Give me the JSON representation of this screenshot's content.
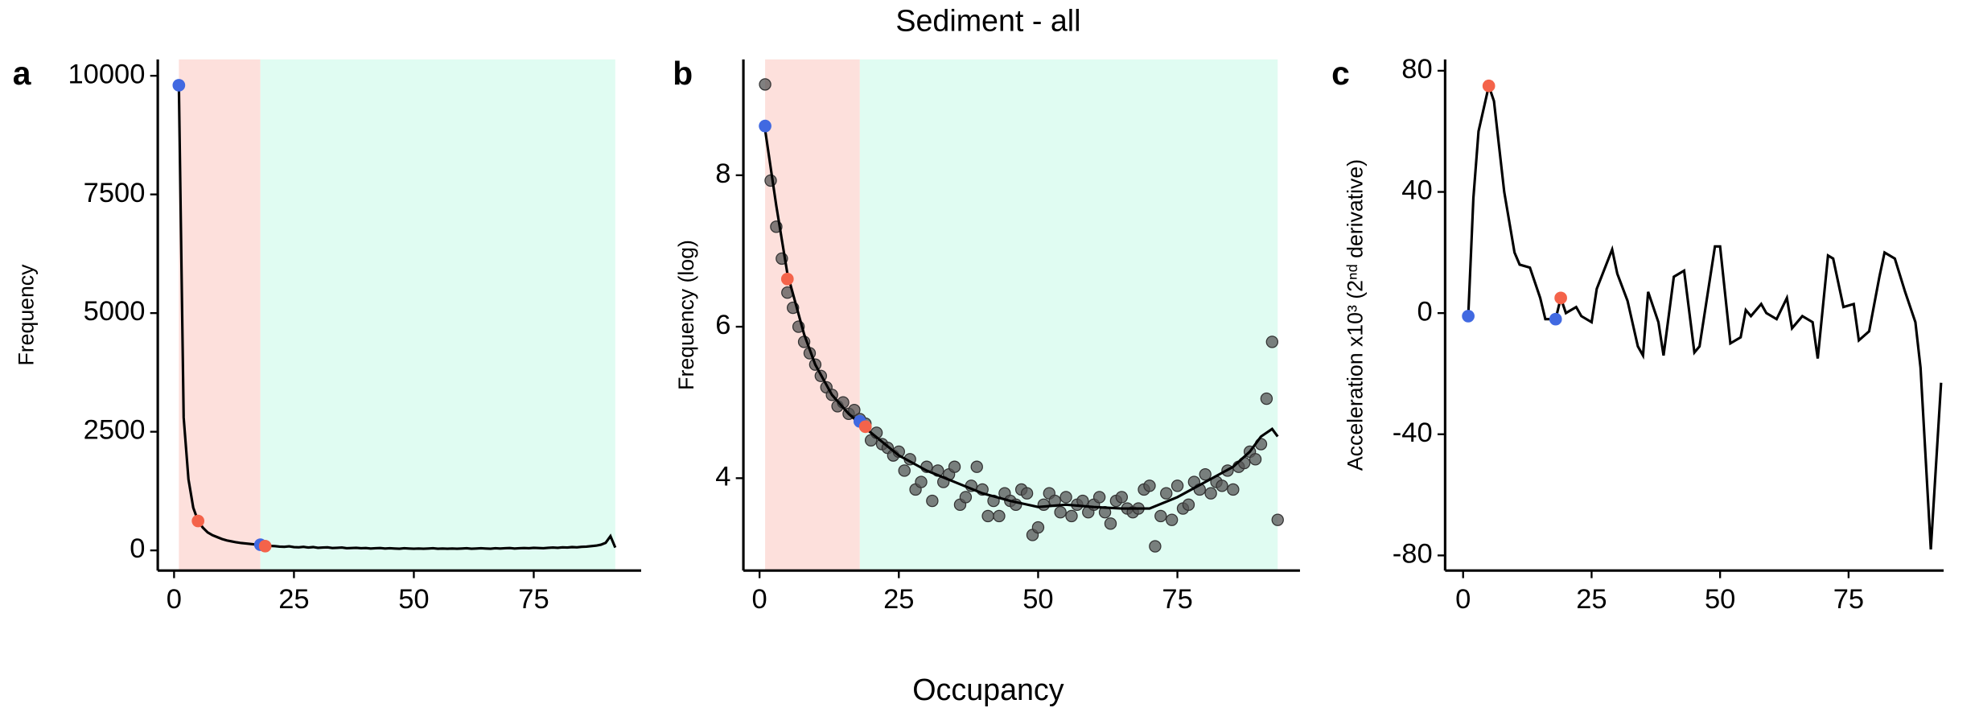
{
  "title": "Sediment - all",
  "xlabel": "Occupancy",
  "chart_data": [
    {
      "type": "line",
      "panel": "a",
      "ylabel": "Frequency",
      "xlim": [
        -3.4,
        97.4
      ],
      "ylim": [
        -425,
        10345
      ],
      "xticks": [
        0,
        25,
        50,
        75
      ],
      "yticks": [
        0,
        2500,
        5000,
        7500,
        10000
      ],
      "regions": [
        {
          "from": 1,
          "to": 18,
          "color": "#fde0dc"
        },
        {
          "from": 18,
          "to": 92,
          "color": "#e0fcf2"
        }
      ],
      "series": [
        {
          "color": "#000000",
          "x": [
            1,
            2,
            3,
            4,
            5,
            6,
            7,
            8,
            9,
            10,
            11,
            12,
            13,
            14,
            15,
            16,
            17,
            18,
            19,
            20,
            21,
            22,
            23,
            24,
            25,
            26,
            27,
            28,
            29,
            30,
            31,
            32,
            33,
            34,
            35,
            36,
            37,
            38,
            39,
            40,
            41,
            42,
            43,
            44,
            45,
            46,
            47,
            48,
            49,
            50,
            51,
            52,
            53,
            54,
            55,
            56,
            57,
            58,
            59,
            60,
            61,
            62,
            63,
            64,
            65,
            66,
            67,
            68,
            69,
            70,
            71,
            72,
            73,
            74,
            75,
            76,
            77,
            78,
            79,
            80,
            81,
            82,
            83,
            84,
            85,
            86,
            87,
            88,
            89,
            90,
            91,
            92
          ],
          "values": [
            9800,
            2800,
            1500,
            900,
            620,
            480,
            380,
            320,
            280,
            240,
            210,
            190,
            170,
            155,
            145,
            135,
            125,
            120,
            100,
            95,
            90,
            80,
            75,
            85,
            70,
            65,
            75,
            60,
            70,
            55,
            60,
            65,
            50,
            55,
            60,
            45,
            50,
            55,
            45,
            50,
            40,
            45,
            50,
            40,
            45,
            40,
            35,
            45,
            40,
            35,
            40,
            35,
            40,
            45,
            35,
            40,
            35,
            40,
            35,
            40,
            45,
            35,
            40,
            45,
            40,
            35,
            45,
            40,
            45,
            50,
            40,
            45,
            50,
            45,
            55,
            50,
            45,
            55,
            60,
            55,
            65,
            60,
            70,
            65,
            75,
            80,
            90,
            100,
            120,
            160,
            300,
            60
          ]
        }
      ],
      "highlights": {
        "x": [
          1,
          5,
          18,
          19
        ],
        "values": [
          9800,
          620,
          120,
          90
        ],
        "colors": [
          "#4169e1",
          "#f4634a",
          "#4169e1",
          "#f4634a"
        ]
      }
    },
    {
      "type": "scatter",
      "panel": "b",
      "ylabel": "Frequency (log)",
      "xlim": [
        -2.9,
        97
      ],
      "ylim": [
        2.78,
        9.53
      ],
      "xticks": [
        0,
        25,
        50,
        75
      ],
      "yticks": [
        4,
        6,
        8
      ],
      "regions": [
        {
          "from": 1,
          "to": 18,
          "color": "#fde0dc"
        },
        {
          "from": 18,
          "to": 93,
          "color": "#e0fcf2"
        }
      ],
      "series": [
        {
          "color": "#555555",
          "x": [
            1,
            2,
            3,
            4,
            5,
            6,
            7,
            8,
            9,
            10,
            11,
            12,
            13,
            14,
            15,
            16,
            17,
            18,
            19,
            20,
            21,
            22,
            23,
            24,
            25,
            26,
            27,
            28,
            29,
            30,
            31,
            32,
            33,
            34,
            35,
            36,
            37,
            38,
            39,
            40,
            41,
            42,
            43,
            44,
            45,
            46,
            47,
            48,
            49,
            50,
            51,
            52,
            53,
            54,
            55,
            56,
            57,
            58,
            59,
            60,
            61,
            62,
            63,
            64,
            65,
            66,
            67,
            68,
            69,
            70,
            71,
            72,
            73,
            74,
            75,
            76,
            77,
            78,
            79,
            80,
            81,
            82,
            83,
            84,
            85,
            86,
            87,
            88,
            89,
            90,
            91,
            92,
            93
          ],
          "values": [
            9.2,
            7.93,
            7.32,
            6.9,
            6.45,
            6.25,
            6.0,
            5.8,
            5.65,
            5.5,
            5.35,
            5.2,
            5.1,
            4.95,
            5.0,
            4.85,
            4.9,
            4.78,
            4.72,
            4.5,
            4.6,
            4.45,
            4.4,
            4.3,
            4.35,
            4.1,
            4.25,
            3.85,
            3.95,
            4.15,
            3.7,
            4.1,
            3.95,
            4.05,
            4.15,
            3.65,
            3.75,
            3.9,
            4.15,
            3.85,
            3.5,
            3.7,
            3.5,
            3.8,
            3.7,
            3.65,
            3.85,
            3.8,
            3.25,
            3.35,
            3.65,
            3.8,
            3.7,
            3.55,
            3.75,
            3.5,
            3.65,
            3.7,
            3.55,
            3.65,
            3.75,
            3.55,
            3.4,
            3.7,
            3.75,
            3.6,
            3.55,
            3.6,
            3.85,
            3.9,
            3.1,
            3.5,
            3.8,
            3.45,
            3.9,
            3.6,
            3.65,
            3.95,
            3.85,
            4.05,
            3.8,
            3.95,
            3.9,
            4.1,
            3.85,
            4.15,
            4.2,
            4.35,
            4.25,
            4.45,
            5.05,
            5.8,
            3.45
          ]
        }
      ],
      "smooth": {
        "color": "#000000",
        "x": [
          1,
          3,
          5,
          8,
          10,
          13,
          16,
          18,
          20,
          25,
          30,
          35,
          40,
          45,
          50,
          55,
          60,
          65,
          70,
          75,
          80,
          85,
          88,
          90,
          92,
          93
        ],
        "values": [
          8.6,
          7.6,
          6.7,
          5.9,
          5.5,
          5.1,
          4.85,
          4.72,
          4.6,
          4.3,
          4.1,
          3.95,
          3.8,
          3.7,
          3.62,
          3.65,
          3.62,
          3.6,
          3.6,
          3.75,
          3.95,
          4.15,
          4.35,
          4.55,
          4.65,
          4.55
        ]
      },
      "highlights": {
        "x": [
          1,
          5,
          18,
          19
        ],
        "values": [
          8.65,
          6.63,
          4.75,
          4.68
        ],
        "colors": [
          "#4169e1",
          "#f4634a",
          "#4169e1",
          "#f4634a"
        ]
      }
    },
    {
      "type": "line",
      "panel": "c",
      "ylabel": "Acceleration x10³ (2ⁿᵈ derivative)",
      "xlim": [
        -3.5,
        93.5
      ],
      "ylim": [
        -85,
        83.75
      ],
      "xticks": [
        0,
        25,
        50,
        75
      ],
      "yticks": [
        -80,
        -40,
        0,
        40,
        80
      ],
      "regions": [],
      "series": [
        {
          "color": "#000000",
          "x": [
            1,
            2,
            3,
            5,
            6,
            7,
            8,
            10,
            11,
            13,
            15,
            16,
            18,
            19,
            20,
            22,
            23,
            25,
            26,
            29,
            30,
            32,
            34,
            35,
            36,
            38,
            39,
            41,
            43,
            45,
            46,
            49,
            50,
            52,
            54,
            55,
            56,
            58,
            59,
            61,
            63,
            64,
            66,
            68,
            69,
            71,
            72,
            74,
            76,
            77,
            79,
            81,
            82,
            84,
            86,
            88,
            89,
            91,
            93
          ],
          "values": [
            -1,
            38,
            60,
            75,
            70,
            55,
            40,
            20,
            16,
            15,
            5,
            -2,
            -2,
            5,
            0,
            2,
            -1,
            -3,
            8,
            21,
            13,
            4,
            -11,
            -14,
            7,
            -3,
            -14,
            12,
            14,
            -13,
            -11,
            22,
            22,
            -10,
            -8,
            1,
            -1,
            3,
            0,
            -2,
            5,
            -5,
            -1,
            -3,
            -15,
            19,
            18,
            2,
            3,
            -9,
            -6,
            12,
            20,
            18,
            7,
            -3,
            -18,
            -78,
            -23
          ]
        }
      ],
      "highlights": {
        "x": [
          1,
          5,
          18,
          19
        ],
        "values": [
          -1,
          75,
          -2,
          5
        ],
        "colors": [
          "#4169e1",
          "#f4634a",
          "#4169e1",
          "#f4634a"
        ]
      }
    }
  ]
}
